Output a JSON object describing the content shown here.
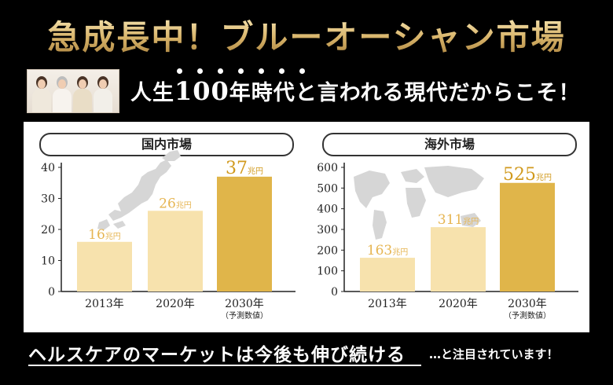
{
  "headline": "急成長中！ブルーオーシャン市場",
  "subline": {
    "before": "人生",
    "number": "100",
    "after": "年時代と言われる現代だからこそ！"
  },
  "colors": {
    "gold_dark": "#e0b54a",
    "gold_mid": "#f0cf86",
    "gold_light": "#f7e2ad",
    "label_gold": "#e6b552",
    "label_dark": "#d19a1e"
  },
  "chart_data": [
    {
      "type": "bar",
      "title": "国内市場",
      "categories": [
        "2013年",
        "2020年",
        "2030年"
      ],
      "category_notes": [
        "",
        "",
        "（予測数値）"
      ],
      "values": [
        16,
        26,
        37
      ],
      "value_labels": [
        "16兆円",
        "26兆円",
        "37兆円"
      ],
      "unit": "兆円",
      "ylim": [
        0,
        40
      ],
      "yticks": [
        0,
        10,
        20,
        30,
        40
      ],
      "background_icon": "japan-map-icon"
    },
    {
      "type": "bar",
      "title": "海外市場",
      "categories": [
        "2013年",
        "2020年",
        "2030年"
      ],
      "category_notes": [
        "",
        "",
        "（予測数値）"
      ],
      "values": [
        163,
        311,
        525
      ],
      "value_labels": [
        "163兆円",
        "311兆円",
        "525兆円"
      ],
      "unit": "兆円",
      "ylim": [
        0,
        600
      ],
      "yticks": [
        0,
        100,
        200,
        300,
        400,
        500,
        600
      ],
      "background_icon": "world-map-icon"
    }
  ],
  "banner": {
    "main": "ヘルスケアのマーケットは今後も伸び続ける",
    "tail": "…と注目されています！"
  }
}
